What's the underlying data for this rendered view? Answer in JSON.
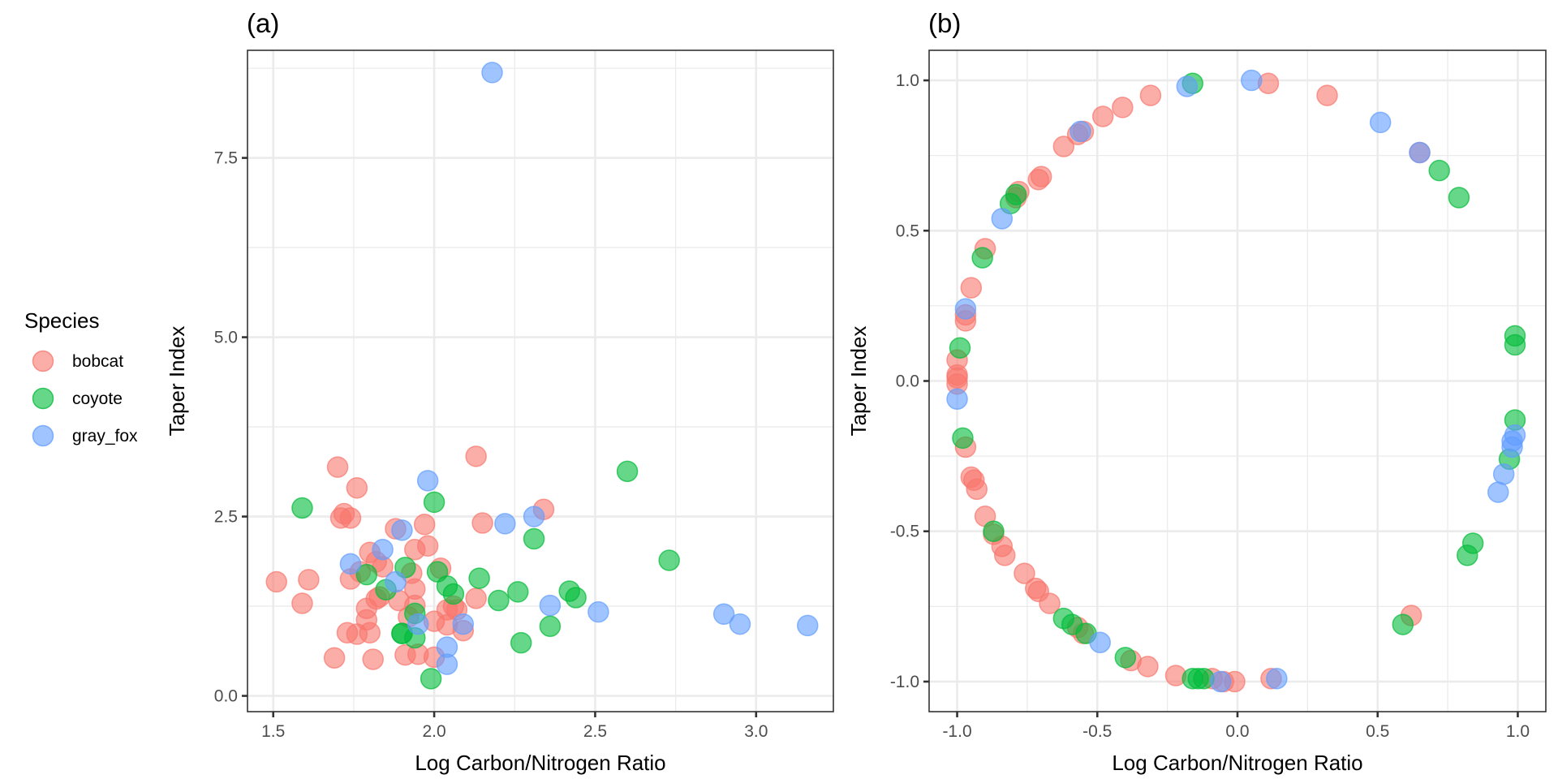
{
  "legend": {
    "title": "Species",
    "items": [
      {
        "label": "bobcat",
        "color": "#F8766D"
      },
      {
        "label": "coyote",
        "color": "#00BA38"
      },
      {
        "label": "gray_fox",
        "color": "#619CFF"
      }
    ]
  },
  "chart_data": [
    {
      "type": "scatter",
      "panel_label": "(a)",
      "title": "",
      "xlabel": "Log Carbon/Nitrogen Ratio",
      "ylabel": "Taper Index",
      "xlim": [
        1.42,
        3.24
      ],
      "ylim": [
        -0.22,
        9.0
      ],
      "xticks": [
        1.5,
        2.0,
        2.5,
        3.0
      ],
      "xtick_labels": [
        "1.5",
        "2.0",
        "2.5",
        "3.0"
      ],
      "yticks": [
        0.0,
        2.5,
        5.0,
        7.5
      ],
      "ytick_labels": [
        "0.0",
        "2.5",
        "5.0",
        "7.5"
      ],
      "x_minor": [
        1.75,
        2.25,
        2.75
      ],
      "y_minor": [
        1.25,
        3.75,
        6.25,
        8.75
      ],
      "grid": true,
      "legend_position": "left",
      "series": [
        {
          "name": "bobcat",
          "points": [
            [
              1.51,
              1.59
            ],
            [
              1.59,
              1.29
            ],
            [
              1.61,
              1.62
            ],
            [
              1.69,
              0.53
            ],
            [
              1.7,
              3.19
            ],
            [
              1.71,
              2.48
            ],
            [
              1.72,
              2.54
            ],
            [
              1.73,
              0.88
            ],
            [
              1.74,
              2.48
            ],
            [
              1.74,
              1.63
            ],
            [
              1.76,
              2.9
            ],
            [
              1.76,
              0.86
            ],
            [
              1.77,
              1.73
            ],
            [
              1.79,
              1.22
            ],
            [
              1.79,
              1.06
            ],
            [
              1.8,
              0.88
            ],
            [
              1.8,
              2.0
            ],
            [
              1.81,
              0.51
            ],
            [
              1.82,
              1.35
            ],
            [
              1.82,
              1.87
            ],
            [
              1.83,
              1.38
            ],
            [
              1.84,
              1.8
            ],
            [
              1.88,
              2.33
            ],
            [
              1.89,
              1.33
            ],
            [
              1.91,
              0.57
            ],
            [
              1.93,
              1.71
            ],
            [
              1.94,
              2.04
            ],
            [
              1.94,
              1.49
            ],
            [
              1.94,
              1.26
            ],
            [
              1.95,
              0.58
            ],
            [
              1.97,
              2.39
            ],
            [
              1.98,
              2.09
            ],
            [
              2.0,
              1.04
            ],
            [
              2.0,
              0.54
            ],
            [
              2.02,
              1.78
            ],
            [
              2.04,
              1.2
            ],
            [
              2.04,
              0.99
            ],
            [
              2.06,
              1.25
            ],
            [
              2.09,
              0.91
            ],
            [
              2.13,
              3.34
            ],
            [
              2.13,
              1.36
            ],
            [
              2.15,
              2.41
            ],
            [
              2.34,
              2.6
            ],
            [
              2.07,
              1.2
            ],
            [
              1.92,
              1.1
            ]
          ]
        },
        {
          "name": "coyote",
          "points": [
            [
              1.59,
              2.62
            ],
            [
              1.79,
              1.69
            ],
            [
              1.85,
              1.48
            ],
            [
              1.9,
              0.87
            ],
            [
              1.91,
              1.79
            ],
            [
              1.94,
              1.15
            ],
            [
              1.94,
              0.81
            ],
            [
              1.99,
              0.24
            ],
            [
              2.0,
              2.7
            ],
            [
              2.01,
              1.73
            ],
            [
              2.04,
              1.53
            ],
            [
              2.06,
              1.42
            ],
            [
              2.14,
              1.64
            ],
            [
              2.2,
              1.33
            ],
            [
              2.26,
              1.45
            ],
            [
              2.27,
              0.74
            ],
            [
              2.31,
              2.19
            ],
            [
              2.36,
              0.97
            ],
            [
              2.42,
              1.46
            ],
            [
              2.44,
              1.37
            ],
            [
              2.6,
              3.13
            ],
            [
              2.73,
              1.89
            ],
            [
              1.9,
              0.87
            ]
          ]
        },
        {
          "name": "gray_fox",
          "points": [
            [
              2.18,
              8.69
            ],
            [
              1.98,
              3.0
            ],
            [
              2.22,
              2.4
            ],
            [
              2.31,
              2.5
            ],
            [
              1.9,
              2.31
            ],
            [
              1.84,
              2.04
            ],
            [
              1.74,
              1.84
            ],
            [
              1.88,
              1.59
            ],
            [
              1.95,
              1.0
            ],
            [
              2.09,
              1.0
            ],
            [
              2.04,
              0.68
            ],
            [
              2.04,
              0.44
            ],
            [
              2.36,
              1.26
            ],
            [
              2.51,
              1.17
            ],
            [
              2.9,
              1.14
            ],
            [
              2.95,
              1.0
            ],
            [
              3.16,
              0.98
            ]
          ]
        }
      ]
    },
    {
      "type": "scatter",
      "panel_label": "(b)",
      "title": "",
      "xlabel": "Log Carbon/Nitrogen Ratio",
      "ylabel": "Taper Index",
      "xlim": [
        -1.1,
        1.1
      ],
      "ylim": [
        -1.1,
        1.1
      ],
      "xticks": [
        -1.0,
        -0.5,
        0.0,
        0.5,
        1.0
      ],
      "xtick_labels": [
        "-1.0",
        "-0.5",
        "0.0",
        "0.5",
        "1.0"
      ],
      "yticks": [
        -1.0,
        -0.5,
        0.0,
        0.5,
        1.0
      ],
      "ytick_labels": [
        "-1.0",
        "-0.5",
        "0.0",
        "0.5",
        "1.0"
      ],
      "x_minor": [
        -0.75,
        -0.25,
        0.25,
        0.75
      ],
      "y_minor": [
        -0.75,
        -0.25,
        0.25,
        0.75
      ],
      "grid": true,
      "series": [
        {
          "name": "bobcat",
          "points": [
            [
              0.11,
              0.99
            ],
            [
              0.32,
              0.95
            ],
            [
              -0.31,
              0.95
            ],
            [
              -0.41,
              0.91
            ],
            [
              -0.48,
              0.88
            ],
            [
              -0.55,
              0.83
            ],
            [
              -0.57,
              0.82
            ],
            [
              -0.62,
              0.78
            ],
            [
              -0.7,
              0.68
            ],
            [
              -0.71,
              0.67
            ],
            [
              -0.78,
              0.63
            ],
            [
              -0.79,
              0.61
            ],
            [
              -0.9,
              0.44
            ],
            [
              -0.95,
              0.31
            ],
            [
              -0.97,
              0.2
            ],
            [
              -0.97,
              0.22
            ],
            [
              -1.0,
              0.07
            ],
            [
              -1.0,
              0.02
            ],
            [
              -1.0,
              0.01
            ],
            [
              -1.0,
              -0.01
            ],
            [
              -0.97,
              -0.22
            ],
            [
              -0.95,
              -0.32
            ],
            [
              -0.94,
              -0.33
            ],
            [
              -0.93,
              -0.36
            ],
            [
              -0.9,
              -0.45
            ],
            [
              -0.87,
              -0.51
            ],
            [
              -0.84,
              -0.55
            ],
            [
              -0.83,
              -0.58
            ],
            [
              -0.76,
              -0.64
            ],
            [
              -0.72,
              -0.69
            ],
            [
              -0.71,
              -0.7
            ],
            [
              -0.67,
              -0.74
            ],
            [
              -0.57,
              -0.82
            ],
            [
              -0.55,
              -0.84
            ],
            [
              -0.38,
              -0.93
            ],
            [
              -0.32,
              -0.95
            ],
            [
              -0.22,
              -0.98
            ],
            [
              -0.09,
              -0.99
            ],
            [
              -0.05,
              -1.0
            ],
            [
              -0.01,
              -1.0
            ],
            [
              0.12,
              -0.99
            ],
            [
              0.62,
              -0.78
            ],
            [
              0.65,
              0.76
            ]
          ]
        },
        {
          "name": "coyote",
          "points": [
            [
              -0.16,
              0.99
            ],
            [
              0.72,
              0.7
            ],
            [
              0.79,
              0.61
            ],
            [
              -0.81,
              0.59
            ],
            [
              -0.79,
              0.62
            ],
            [
              -0.91,
              0.41
            ],
            [
              -0.99,
              0.11
            ],
            [
              0.99,
              0.15
            ],
            [
              0.99,
              0.12
            ],
            [
              -0.98,
              -0.19
            ],
            [
              0.99,
              -0.13
            ],
            [
              0.97,
              -0.26
            ],
            [
              -0.87,
              -0.5
            ],
            [
              0.84,
              -0.54
            ],
            [
              0.82,
              -0.58
            ],
            [
              0.59,
              -0.81
            ],
            [
              -0.62,
              -0.79
            ],
            [
              -0.59,
              -0.81
            ],
            [
              -0.54,
              -0.84
            ],
            [
              -0.4,
              -0.92
            ],
            [
              -0.16,
              -0.99
            ],
            [
              -0.14,
              -0.99
            ],
            [
              -0.12,
              -0.99
            ]
          ]
        },
        {
          "name": "gray_fox",
          "points": [
            [
              -0.18,
              0.98
            ],
            [
              0.05,
              1.0
            ],
            [
              0.51,
              0.86
            ],
            [
              0.65,
              0.76
            ],
            [
              -0.56,
              0.83
            ],
            [
              -0.84,
              0.54
            ],
            [
              -0.97,
              0.24
            ],
            [
              -1.0,
              -0.06
            ],
            [
              0.99,
              -0.18
            ],
            [
              0.98,
              -0.2
            ],
            [
              0.98,
              -0.22
            ],
            [
              0.95,
              -0.31
            ],
            [
              0.93,
              -0.37
            ],
            [
              -0.49,
              -0.87
            ],
            [
              -0.06,
              -1.0
            ],
            [
              0.14,
              -0.99
            ]
          ]
        }
      ]
    }
  ]
}
